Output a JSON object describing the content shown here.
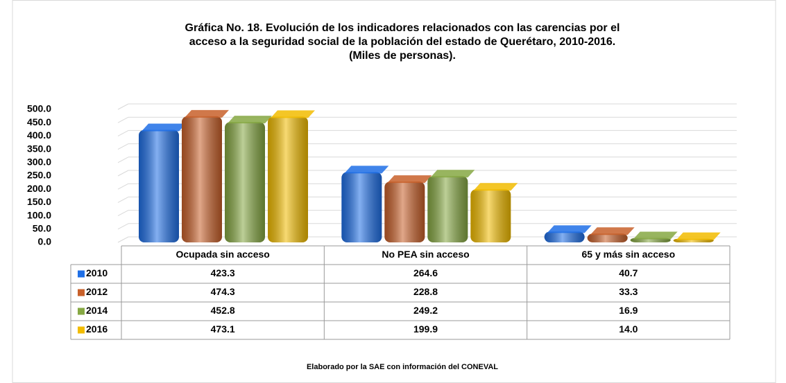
{
  "chart_data": {
    "type": "bar",
    "title": [
      "Gráfica No. 18. Evolución de los indicadores relacionados con las carencias por el",
      "acceso a la seguridad social de la población del estado de Querétaro, 2010-2016.",
      "(Miles de personas)."
    ],
    "source": "Elaborado por la SAE con información del CONEVAL",
    "categories": [
      "Ocupada sin acceso",
      "No PEA sin acceso",
      "65 y más sin acceso"
    ],
    "series": [
      {
        "name": "2010",
        "color": "#1f6fe6",
        "values": [
          423.3,
          264.6,
          40.7
        ],
        "value_labels": [
          "423.3",
          "264.6",
          "40.7"
        ]
      },
      {
        "name": "2012",
        "color": "#c8602a",
        "values": [
          474.3,
          228.8,
          33.3
        ],
        "value_labels": [
          "474.3",
          "228.8",
          "33.3"
        ]
      },
      {
        "name": "2014",
        "color": "#86a843",
        "values": [
          452.8,
          249.2,
          16.9
        ],
        "value_labels": [
          "452.8",
          "249.2",
          "16.9"
        ]
      },
      {
        "name": "2016",
        "color": "#f2bc00",
        "values": [
          473.1,
          199.9,
          14.0
        ],
        "value_labels": [
          "473.1",
          "199.9",
          "14.0"
        ]
      }
    ],
    "ylim": [
      0,
      500
    ],
    "yticks": [
      {
        "value": 0,
        "label": "0.0"
      },
      {
        "value": 50,
        "label": "50.0"
      },
      {
        "value": 100,
        "label": "100.0"
      },
      {
        "value": 150,
        "label": "150.0"
      },
      {
        "value": 200,
        "label": "200.0"
      },
      {
        "value": 250,
        "label": "250.0"
      },
      {
        "value": 300,
        "label": "300.0"
      },
      {
        "value": 350,
        "label": "350.0"
      },
      {
        "value": 400,
        "label": "400.0"
      },
      {
        "value": 450,
        "label": "450.0"
      },
      {
        "value": 500,
        "label": "500.0"
      }
    ],
    "grid": true
  }
}
